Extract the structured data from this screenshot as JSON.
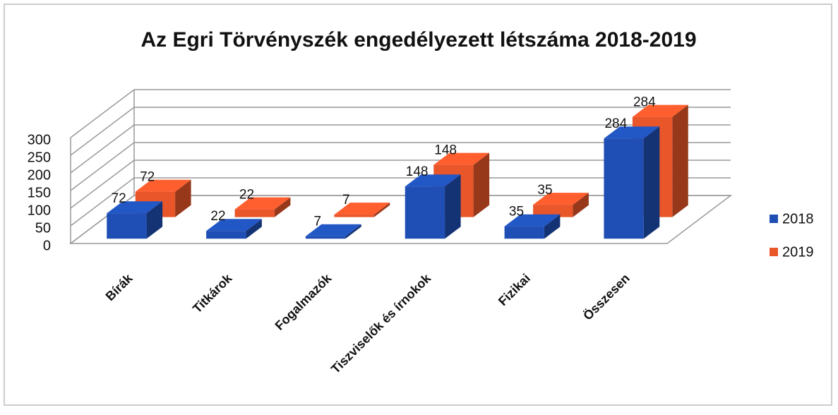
{
  "chart_data": {
    "type": "bar3d",
    "title": "Az Egri Törvényszék engedélyezett létszáma 2018-2019",
    "categories": [
      "Bírák",
      "Titkárok",
      "Fogalmazók",
      "Tiszviselők és írnokok",
      "Fizikai",
      "Összesen"
    ],
    "series": [
      {
        "name": "2018",
        "color": "#1f4fb4",
        "values": [
          72,
          22,
          7,
          148,
          35,
          284
        ]
      },
      {
        "name": "2019",
        "color": "#e8562a",
        "values": [
          72,
          22,
          7,
          148,
          35,
          284
        ]
      }
    ],
    "ylim": [
      0,
      300
    ],
    "yticks": [
      0,
      50,
      100,
      150,
      200,
      250,
      300
    ],
    "grid": true,
    "legend": "right"
  }
}
